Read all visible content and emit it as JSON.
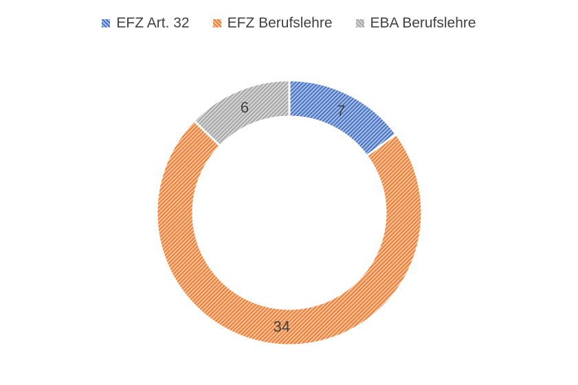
{
  "chart_data": {
    "type": "doughnut",
    "title": "",
    "legend_position": "top",
    "series": [
      {
        "name": "EFZ Art. 32",
        "value": 7,
        "label": "7",
        "color": "#4472C4"
      },
      {
        "name": "EFZ Berufslehre",
        "value": 34,
        "label": "34",
        "color": "#ED7D31"
      },
      {
        "name": "EBA Berufslehre",
        "value": 6,
        "label": "6",
        "color": "#A5A5A5"
      }
    ]
  }
}
